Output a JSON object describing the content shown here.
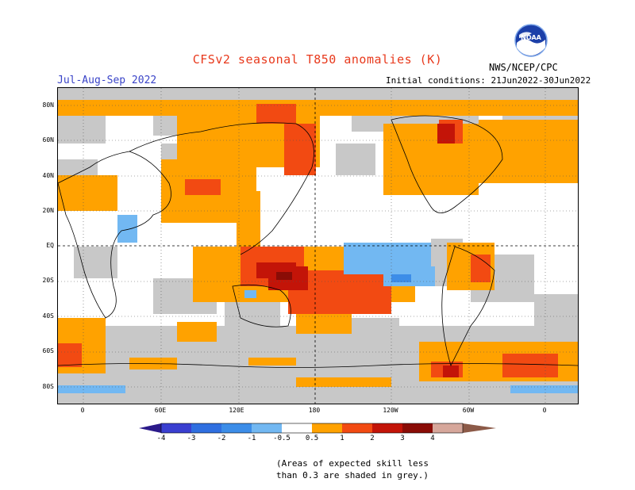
{
  "header": {
    "title": "CFSv2 seasonal T850 anomalies (K)",
    "season": "Jul-Aug-Sep 2022",
    "initial_conditions": "Initial conditions: 21Jun2022-30Jun2022",
    "agency": "NWS/NCEP/CPC",
    "logo_text": "NOAA"
  },
  "map": {
    "lat_labels": [
      "80N",
      "60N",
      "40N",
      "20N",
      "EQ",
      "20S",
      "40S",
      "60S",
      "80S"
    ],
    "lon_labels": [
      "0",
      "60E",
      "120E",
      "180",
      "120W",
      "60W",
      "0"
    ]
  },
  "colorbar": {
    "labels": [
      "-4",
      "-3",
      "-2",
      "-1",
      "-0.5",
      "0.5",
      "1",
      "2",
      "3",
      "4"
    ],
    "colors": {
      "lt_-4": "#2b1a8a",
      "-4_-3": "#3a3fd0",
      "-3_-2": "#2f6fe0",
      "-2_-1": "#3c8de8",
      "-1_-0.5": "#72b8f2",
      "0.5_1": "#ffa200",
      "1_2": "#f24a12",
      "2_3": "#c31408",
      "3_4": "#8a0c06",
      "4_5": "#d6a79b",
      "gt_5": "#8c5a48"
    },
    "skill_grey": "#c8c8c8"
  },
  "note": {
    "line1": "(Areas of expected skill less",
    "line2": "than 0.3 are shaded in grey.)"
  }
}
